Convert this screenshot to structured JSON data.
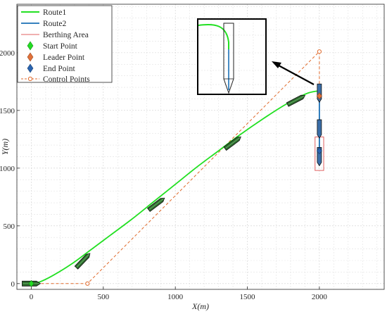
{
  "chart_data": {
    "type": "line",
    "title": "",
    "xlabel": "X(m)",
    "ylabel": "Y(m)",
    "xlim": [
      -100,
      2450
    ],
    "ylim": [
      -50,
      2420
    ],
    "xticks": [
      0,
      500,
      1000,
      1500,
      2000
    ],
    "yticks": [
      0,
      500,
      1000,
      1500,
      2000
    ],
    "grid": true,
    "legend_position": "top-left",
    "series": [
      {
        "name": "Route1",
        "style": "solid-line",
        "color": "#22e022",
        "x": [
          0,
          60,
          150,
          280,
          400,
          550,
          700,
          850,
          1000,
          1150,
          1300,
          1450,
          1600,
          1750,
          1850,
          1920,
          1970,
          2000
        ],
        "y": [
          0,
          15,
          70,
          170,
          280,
          420,
          560,
          710,
          860,
          1010,
          1150,
          1290,
          1420,
          1540,
          1610,
          1650,
          1665,
          1668
        ]
      },
      {
        "name": "Route2",
        "style": "solid-line",
        "color": "#1a6fb5",
        "x": [
          2000,
          2000
        ],
        "y": [
          1668,
          1150
        ]
      },
      {
        "name": "Berthing Area",
        "style": "rectangle-outline",
        "color": "#e06060",
        "x": [
          1970,
          2030
        ],
        "y": [
          980,
          1270
        ]
      },
      {
        "name": "Start Point",
        "style": "diamond-marker",
        "color": "#22dd22",
        "x": [
          0
        ],
        "y": [
          0
        ]
      },
      {
        "name": "Leader Point",
        "style": "diamond-marker",
        "color": "#e0703a",
        "x": [
          2000
        ],
        "y": [
          1625
        ]
      },
      {
        "name": "End Point",
        "style": "diamond-marker",
        "color": "#2a64b0",
        "x": [
          2000
        ],
        "y": [
          1150
        ]
      },
      {
        "name": "Control Points",
        "style": "dashed-line-circles",
        "color": "#e06a2c",
        "x": [
          0,
          390,
          2000,
          2000
        ],
        "y": [
          0,
          0,
          2010,
          1668
        ]
      }
    ],
    "annotations": [
      {
        "type": "inset-zoom",
        "description": "zoomed view of turn at (2000, 1668)"
      },
      {
        "type": "arrow",
        "from_region": "inset",
        "to_x": 2000,
        "to_y": 1668
      }
    ],
    "vessels": [
      {
        "x": 0,
        "y": 0,
        "heading": "horizontal"
      },
      {
        "x": 360,
        "y": 200,
        "heading": "route1"
      },
      {
        "x": 870,
        "y": 690,
        "heading": "route1"
      },
      {
        "x": 1400,
        "y": 1220,
        "heading": "route1"
      },
      {
        "x": 1840,
        "y": 1590,
        "heading": "route1"
      },
      {
        "x": 2000,
        "y": 1650,
        "heading": "vertical"
      },
      {
        "x": 2000,
        "y": 1340,
        "heading": "vertical"
      },
      {
        "x": 2000,
        "y": 1100,
        "heading": "vertical"
      }
    ]
  }
}
